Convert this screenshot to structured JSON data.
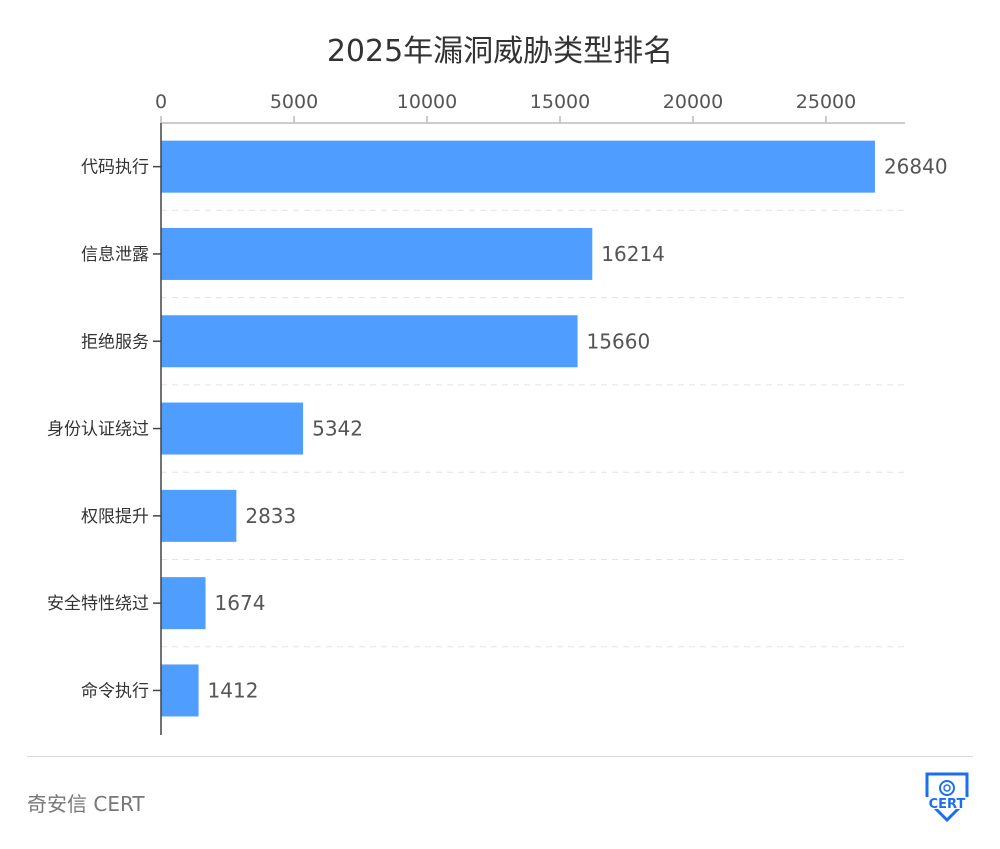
{
  "chart_data": {
    "type": "bar",
    "orientation": "horizontal",
    "title": "2025年漏洞威胁类型排名",
    "categories": [
      "代码执行",
      "信息泄露",
      "拒绝服务",
      "身份认证绕过",
      "权限提升",
      "安全特性绕过",
      "命令执行"
    ],
    "values": [
      26840,
      16214,
      15660,
      5342,
      2833,
      1674,
      1412
    ],
    "xlim": [
      0,
      28000
    ],
    "xticks": [
      0,
      5000,
      10000,
      15000,
      20000,
      25000
    ],
    "x_axis_position": "top",
    "grid": "dashed horizontal separators",
    "bar_color": "#4f9dff",
    "data_labels": true
  },
  "footer": {
    "source": "奇安信 CERT",
    "logo_text": "CERT",
    "logo_color": "#1a6ff0"
  }
}
